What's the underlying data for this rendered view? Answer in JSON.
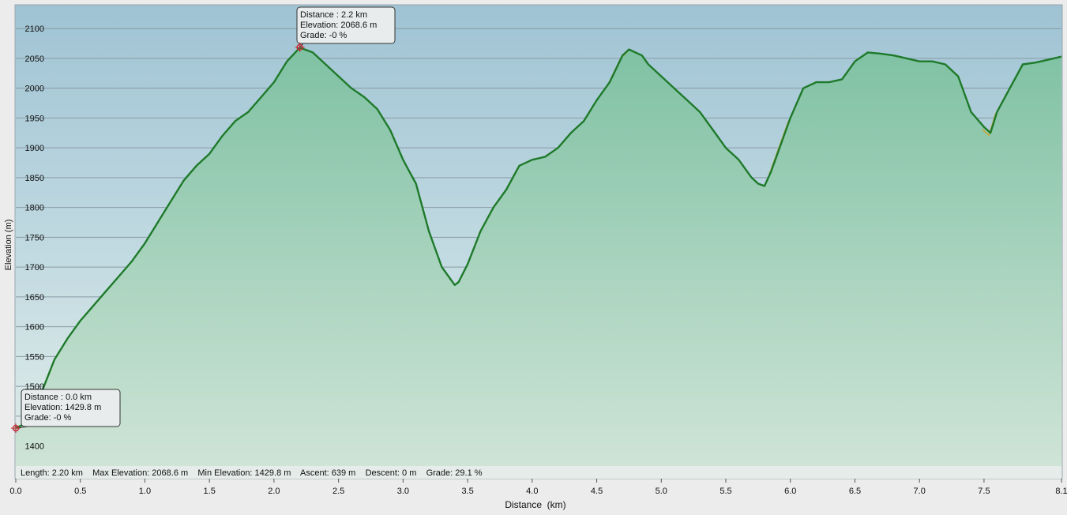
{
  "chart_data": {
    "type": "area",
    "xlabel": "Distance  (km)",
    "ylabel": "Elevation (m)",
    "xlim": [
      0.0,
      8.1
    ],
    "ylim": [
      1365,
      2140
    ],
    "x_ticks": [
      "0.0",
      "0.5",
      "1.0",
      "1.5",
      "2.0",
      "2.5",
      "3.0",
      "3.5",
      "4.0",
      "4.5",
      "5.0",
      "5.5",
      "6.0",
      "6.5",
      "7.0",
      "7.5",
      "8.1"
    ],
    "x_tick_values": [
      0.0,
      0.5,
      1.0,
      1.5,
      2.0,
      2.5,
      3.0,
      3.5,
      4.0,
      4.5,
      5.0,
      5.5,
      6.0,
      6.5,
      7.0,
      7.5,
      8.1
    ],
    "y_ticks": [
      1400,
      1450,
      1500,
      1550,
      1600,
      1650,
      1700,
      1750,
      1800,
      1850,
      1900,
      1950,
      2000,
      2050,
      2100
    ],
    "grid": true,
    "series": [
      {
        "color": "#1e7a2a",
        "x": [
          0.0,
          0.1,
          0.2,
          0.3,
          0.4,
          0.5,
          0.6,
          0.7,
          0.8,
          0.9,
          1.0,
          1.1,
          1.2,
          1.3,
          1.4,
          1.5,
          1.6,
          1.7,
          1.8,
          1.9,
          2.0,
          2.1,
          2.2,
          2.3,
          2.4,
          2.5,
          2.6,
          2.7,
          2.8,
          2.9,
          2.95,
          3.0,
          3.05,
          3.1,
          3.2,
          3.3,
          3.35,
          3.4,
          3.43,
          3.5,
          3.6,
          3.7,
          3.8,
          3.9,
          4.0,
          4.1,
          4.2,
          4.3,
          4.4,
          4.5,
          4.6,
          4.7,
          4.75,
          4.85,
          4.9,
          5.0,
          5.1,
          5.2,
          5.3,
          5.4,
          5.5,
          5.6,
          5.7,
          5.75,
          5.8,
          5.85,
          5.9,
          6.0,
          6.1,
          6.2,
          6.3,
          6.4,
          6.5,
          6.6,
          6.7,
          6.8,
          6.9,
          7.0,
          7.1,
          7.2,
          7.3,
          7.4,
          7.5,
          7.55,
          7.6,
          7.7,
          7.8,
          7.9,
          8.0,
          8.1
        ],
        "y": [
          1430,
          1440,
          1490,
          1545,
          1580,
          1610,
          1635,
          1660,
          1685,
          1710,
          1740,
          1775,
          1810,
          1845,
          1870,
          1890,
          1920,
          1945,
          1960,
          1985,
          2010,
          2045,
          2068,
          2060,
          2040,
          2020,
          2000,
          1985,
          1965,
          1930,
          1905,
          1880,
          1860,
          1840,
          1760,
          1700,
          1685,
          1670,
          1675,
          1705,
          1760,
          1800,
          1830,
          1870,
          1880,
          1885,
          1900,
          1925,
          1945,
          1980,
          2010,
          2055,
          2065,
          2055,
          2040,
          2020,
          2000,
          1980,
          1960,
          1930,
          1900,
          1880,
          1850,
          1840,
          1836,
          1860,
          1890,
          1950,
          2000,
          2010,
          2010,
          2015,
          2045,
          2060,
          2058,
          2055,
          2050,
          2045,
          2045,
          2040,
          2020,
          1960,
          1935,
          1925,
          1960,
          2000,
          2040,
          2043,
          2048,
          2053
        ]
      }
    ],
    "markers": [
      {
        "x": 2.2,
        "y": 2068.6,
        "lines": [
          "Distance  : 2.2 km",
          "Elevation: 2068.6 m",
          "Grade: -0 %"
        ]
      },
      {
        "x": 0.0,
        "y": 1429.8,
        "lines": [
          "Distance  : 0.0 km",
          "Elevation: 1429.8 m",
          "Grade: -0 %"
        ]
      }
    ],
    "stats": "Length: 2.20 km    Max Elevation: 2068.6 m    Min Elevation: 1429.8 m    Ascent: 639 m    Descent: 0 m    Grade: 29.1 %"
  },
  "colors": {
    "sky_top": "#a3c6d6",
    "fill_top": "#7ec0a4",
    "fill_bottom": "#d2e6d8",
    "line": "#1e7a2a",
    "highlight": "#c8a83a",
    "grid": "#8a9aa4",
    "marker": "#c0303a"
  }
}
